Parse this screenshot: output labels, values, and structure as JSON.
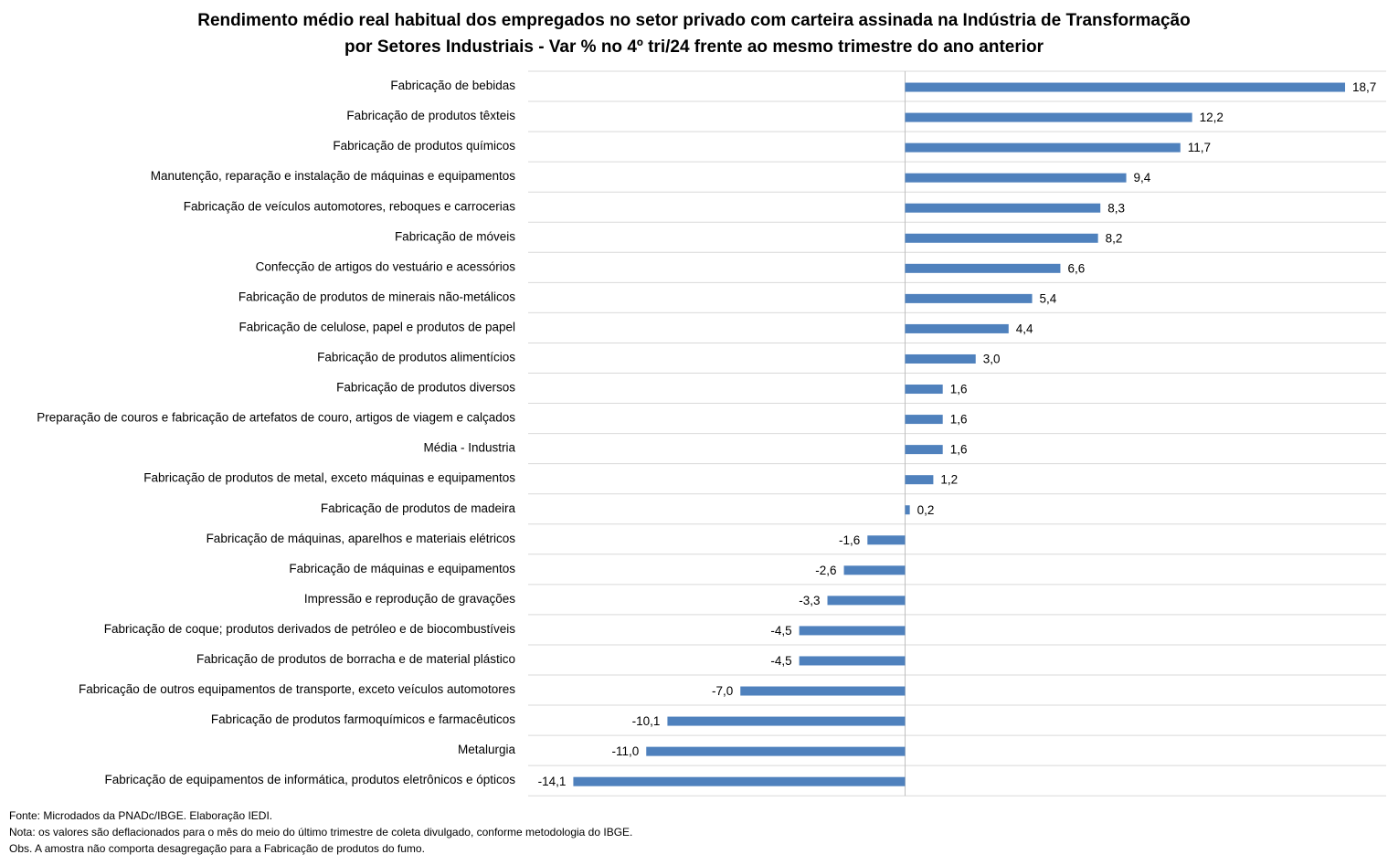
{
  "chart_data": {
    "type": "bar",
    "orientation": "horizontal",
    "title": "Rendimento médio real habitual dos empregados no setor privado com carteira assinada na Indústria de Transformação",
    "subtitle": "por Setores Industriais - Var % no 4º tri/24 frente ao mesmo trimestre do ano anterior",
    "categories": [
      "Fabricação de bebidas",
      "Fabricação de produtos têxteis",
      "Fabricação de produtos químicos",
      "Manutenção, reparação e instalação de máquinas e equipamentos",
      "Fabricação de veículos automotores, reboques e carrocerias",
      "Fabricação de móveis",
      "Confecção de artigos do vestuário e acessórios",
      "Fabricação de produtos de minerais não-metálicos",
      "Fabricação de celulose, papel e produtos de papel",
      "Fabricação de produtos alimentícios",
      "Fabricação de produtos diversos",
      "Preparação de couros e fabricação de artefatos de couro, artigos de viagem e calçados",
      "Média - Industria",
      "Fabricação de produtos de metal, exceto máquinas e equipamentos",
      "Fabricação de produtos de madeira",
      "Fabricação de máquinas, aparelhos e materiais elétricos",
      "Fabricação de máquinas e equipamentos",
      "Impressão e reprodução de gravações",
      "Fabricação de coque; produtos derivados de petróleo e de biocombustíveis",
      "Fabricação de produtos de borracha e de material plástico",
      "Fabricação de outros equipamentos de transporte, exceto veículos automotores",
      "Fabricação de produtos farmoquímicos e farmacêuticos",
      "Metalurgia",
      "Fabricação de equipamentos de informática, produtos eletrônicos e ópticos"
    ],
    "values": [
      18.7,
      12.2,
      11.7,
      9.4,
      8.3,
      8.2,
      6.6,
      5.4,
      4.4,
      3.0,
      1.6,
      1.6,
      1.6,
      1.2,
      0.2,
      -1.6,
      -2.6,
      -3.3,
      -4.5,
      -4.5,
      -7.0,
      -10.1,
      -11.0,
      -14.1
    ],
    "value_labels": [
      "18,7",
      "12,2",
      "11,7",
      "9,4",
      "8,3",
      "8,2",
      "6,6",
      "5,4",
      "4,4",
      "3,0",
      "1,6",
      "1,6",
      "1,6",
      "1,2",
      "0,2",
      "-1,6",
      "-2,6",
      "-3,3",
      "-4,5",
      "-4,5",
      "-7,0",
      "-10,1",
      "-11,0",
      "-14,1"
    ],
    "xlim": [
      -16,
      20
    ],
    "grid": "horizontal separators between categories",
    "legend": "none",
    "bar_color": "#4f81bd",
    "grid_color": "#d9d9d9",
    "axis_color": "#bfbfbf"
  },
  "notes": [
    "Fonte: Microdados da PNADc/IBGE. Elaboração IEDI.",
    "Nota: os valores são deflacionados para o mês do meio do último trimestre de coleta divulgado, conforme metodologia do IBGE.",
    "Obs. A amostra não comporta desagregação para a  Fabricação de produtos do fumo."
  ]
}
